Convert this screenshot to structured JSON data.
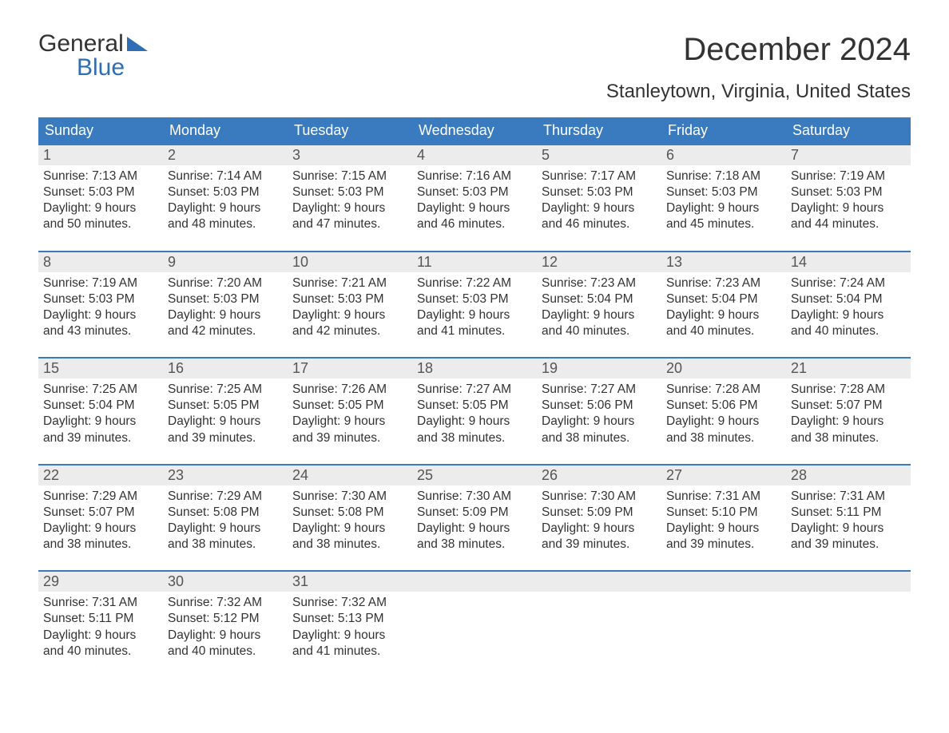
{
  "brand": {
    "word1": "General",
    "word2": "Blue"
  },
  "title": "December 2024",
  "location": "Stanleytown, Virginia, United States",
  "colors": {
    "header_bg": "#3a7bbf",
    "header_text": "#ffffff",
    "daynum_bg": "#ececec",
    "rule": "#3a7bbf",
    "text": "#333333",
    "accent": "#2f6eb5",
    "background": "#ffffff"
  },
  "typography": {
    "title_fontsize": 40,
    "location_fontsize": 24,
    "dow_fontsize": 18,
    "body_fontsize": 15.5,
    "font_family": "Arial"
  },
  "layout": {
    "columns": 7,
    "rows": 5,
    "first_day_column": 0
  },
  "days_of_week": [
    "Sunday",
    "Monday",
    "Tuesday",
    "Wednesday",
    "Thursday",
    "Friday",
    "Saturday"
  ],
  "labels": {
    "sunrise": "Sunrise:",
    "sunset": "Sunset:",
    "daylight": "Daylight:"
  },
  "weeks": [
    [
      {
        "n": "1",
        "sunrise": "7:13 AM",
        "sunset": "5:03 PM",
        "day_h": "9",
        "day_m": "50"
      },
      {
        "n": "2",
        "sunrise": "7:14 AM",
        "sunset": "5:03 PM",
        "day_h": "9",
        "day_m": "48"
      },
      {
        "n": "3",
        "sunrise": "7:15 AM",
        "sunset": "5:03 PM",
        "day_h": "9",
        "day_m": "47"
      },
      {
        "n": "4",
        "sunrise": "7:16 AM",
        "sunset": "5:03 PM",
        "day_h": "9",
        "day_m": "46"
      },
      {
        "n": "5",
        "sunrise": "7:17 AM",
        "sunset": "5:03 PM",
        "day_h": "9",
        "day_m": "46"
      },
      {
        "n": "6",
        "sunrise": "7:18 AM",
        "sunset": "5:03 PM",
        "day_h": "9",
        "day_m": "45"
      },
      {
        "n": "7",
        "sunrise": "7:19 AM",
        "sunset": "5:03 PM",
        "day_h": "9",
        "day_m": "44"
      }
    ],
    [
      {
        "n": "8",
        "sunrise": "7:19 AM",
        "sunset": "5:03 PM",
        "day_h": "9",
        "day_m": "43"
      },
      {
        "n": "9",
        "sunrise": "7:20 AM",
        "sunset": "5:03 PM",
        "day_h": "9",
        "day_m": "42"
      },
      {
        "n": "10",
        "sunrise": "7:21 AM",
        "sunset": "5:03 PM",
        "day_h": "9",
        "day_m": "42"
      },
      {
        "n": "11",
        "sunrise": "7:22 AM",
        "sunset": "5:03 PM",
        "day_h": "9",
        "day_m": "41"
      },
      {
        "n": "12",
        "sunrise": "7:23 AM",
        "sunset": "5:04 PM",
        "day_h": "9",
        "day_m": "40"
      },
      {
        "n": "13",
        "sunrise": "7:23 AM",
        "sunset": "5:04 PM",
        "day_h": "9",
        "day_m": "40"
      },
      {
        "n": "14",
        "sunrise": "7:24 AM",
        "sunset": "5:04 PM",
        "day_h": "9",
        "day_m": "40"
      }
    ],
    [
      {
        "n": "15",
        "sunrise": "7:25 AM",
        "sunset": "5:04 PM",
        "day_h": "9",
        "day_m": "39"
      },
      {
        "n": "16",
        "sunrise": "7:25 AM",
        "sunset": "5:05 PM",
        "day_h": "9",
        "day_m": "39"
      },
      {
        "n": "17",
        "sunrise": "7:26 AM",
        "sunset": "5:05 PM",
        "day_h": "9",
        "day_m": "39"
      },
      {
        "n": "18",
        "sunrise": "7:27 AM",
        "sunset": "5:05 PM",
        "day_h": "9",
        "day_m": "38"
      },
      {
        "n": "19",
        "sunrise": "7:27 AM",
        "sunset": "5:06 PM",
        "day_h": "9",
        "day_m": "38"
      },
      {
        "n": "20",
        "sunrise": "7:28 AM",
        "sunset": "5:06 PM",
        "day_h": "9",
        "day_m": "38"
      },
      {
        "n": "21",
        "sunrise": "7:28 AM",
        "sunset": "5:07 PM",
        "day_h": "9",
        "day_m": "38"
      }
    ],
    [
      {
        "n": "22",
        "sunrise": "7:29 AM",
        "sunset": "5:07 PM",
        "day_h": "9",
        "day_m": "38"
      },
      {
        "n": "23",
        "sunrise": "7:29 AM",
        "sunset": "5:08 PM",
        "day_h": "9",
        "day_m": "38"
      },
      {
        "n": "24",
        "sunrise": "7:30 AM",
        "sunset": "5:08 PM",
        "day_h": "9",
        "day_m": "38"
      },
      {
        "n": "25",
        "sunrise": "7:30 AM",
        "sunset": "5:09 PM",
        "day_h": "9",
        "day_m": "38"
      },
      {
        "n": "26",
        "sunrise": "7:30 AM",
        "sunset": "5:09 PM",
        "day_h": "9",
        "day_m": "39"
      },
      {
        "n": "27",
        "sunrise": "7:31 AM",
        "sunset": "5:10 PM",
        "day_h": "9",
        "day_m": "39"
      },
      {
        "n": "28",
        "sunrise": "7:31 AM",
        "sunset": "5:11 PM",
        "day_h": "9",
        "day_m": "39"
      }
    ],
    [
      {
        "n": "29",
        "sunrise": "7:31 AM",
        "sunset": "5:11 PM",
        "day_h": "9",
        "day_m": "40"
      },
      {
        "n": "30",
        "sunrise": "7:32 AM",
        "sunset": "5:12 PM",
        "day_h": "9",
        "day_m": "40"
      },
      {
        "n": "31",
        "sunrise": "7:32 AM",
        "sunset": "5:13 PM",
        "day_h": "9",
        "day_m": "41"
      },
      null,
      null,
      null,
      null
    ]
  ]
}
